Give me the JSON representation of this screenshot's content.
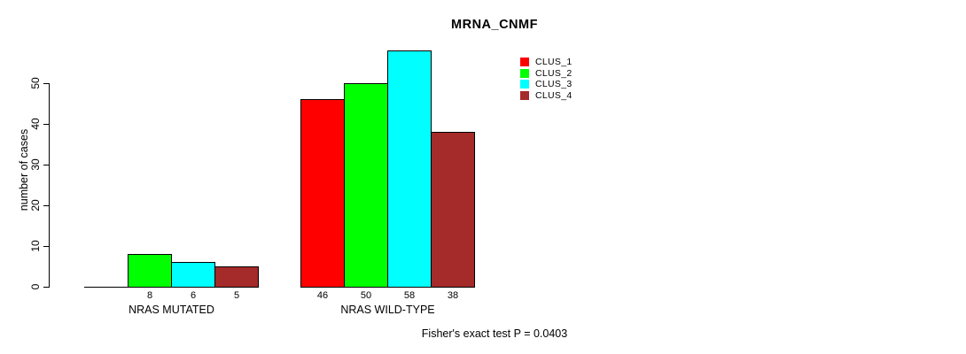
{
  "title": "MRNA_CNMF",
  "footer": "Fisher's exact test P = 0.0403",
  "chart_data": {
    "type": "bar",
    "title": "MRNA_CNMF",
    "xlabel": "",
    "ylabel": "number of cases",
    "categories": [
      "NRAS MUTATED",
      "NRAS WILD-TYPE"
    ],
    "series": [
      {
        "name": "CLUS_1",
        "color": "#FF0000",
        "values": [
          0,
          46
        ]
      },
      {
        "name": "CLUS_2",
        "color": "#00FF00",
        "values": [
          8,
          50
        ]
      },
      {
        "name": "CLUS_3",
        "color": "#00FFFF",
        "values": [
          6,
          58
        ]
      },
      {
        "name": "CLUS_4",
        "color": "#A52A2A",
        "values": [
          5,
          38
        ]
      }
    ],
    "bar_value_labels": [
      [
        "",
        "8",
        "6",
        "5"
      ],
      [
        "46",
        "50",
        "58",
        "38"
      ]
    ],
    "yticks": [
      0,
      10,
      20,
      30,
      40,
      50
    ],
    "ylim": [
      0,
      58
    ],
    "grid": false,
    "legend_position": "top-right",
    "legend": [
      "CLUS_1",
      "CLUS_2",
      "CLUS_3",
      "CLUS_4"
    ],
    "annotation": "Fisher's exact test P = 0.0403"
  }
}
